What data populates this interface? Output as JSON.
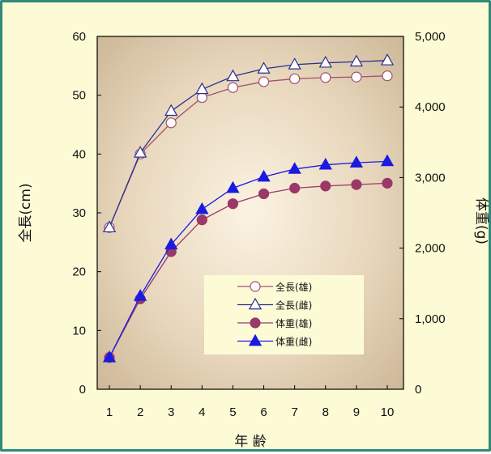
{
  "chart_data": {
    "type": "line",
    "title": "",
    "xlabel": "年 齢",
    "ylabel_left": "全長(cm)",
    "ylabel_right": "体重(g)",
    "x": [
      1,
      2,
      3,
      4,
      5,
      6,
      7,
      8,
      9,
      10
    ],
    "x_tick_labels": [
      "1",
      "2",
      "3",
      "4",
      "5",
      "6",
      "7",
      "8",
      "9",
      "10"
    ],
    "ylim_left": [
      0,
      60
    ],
    "ylim_right": [
      0,
      5000
    ],
    "y_ticks_left": [
      "0",
      "10",
      "20",
      "30",
      "40",
      "50",
      "60"
    ],
    "y_ticks_right": [
      "0",
      "1,000",
      "2,000",
      "3,000",
      "4,000",
      "5,000"
    ],
    "grid": false,
    "legend_position": "lower-right",
    "series": [
      {
        "name": "全長(雄)",
        "axis": "left",
        "marker": "circle-open",
        "color": "#a05070",
        "values": [
          27.5,
          40.0,
          45.3,
          49.6,
          51.3,
          52.3,
          52.8,
          53.0,
          53.1,
          53.3
        ]
      },
      {
        "name": "全長(雌)",
        "axis": "left",
        "marker": "triangle-open",
        "color": "#2b2f8f",
        "values": [
          27.5,
          40.2,
          47.3,
          51.0,
          53.2,
          54.5,
          55.2,
          55.5,
          55.7,
          55.9
        ]
      },
      {
        "name": "体重(雄)",
        "axis": "right",
        "marker": "circle-filled",
        "color": "#9a3868",
        "values": [
          450,
          1280,
          1950,
          2400,
          2630,
          2770,
          2850,
          2880,
          2900,
          2920
        ]
      },
      {
        "name": "体重(雌)",
        "axis": "right",
        "marker": "triangle-filled",
        "color": "#1a1ae0",
        "values": [
          450,
          1320,
          2050,
          2550,
          2850,
          3010,
          3120,
          3180,
          3210,
          3230
        ]
      }
    ]
  }
}
